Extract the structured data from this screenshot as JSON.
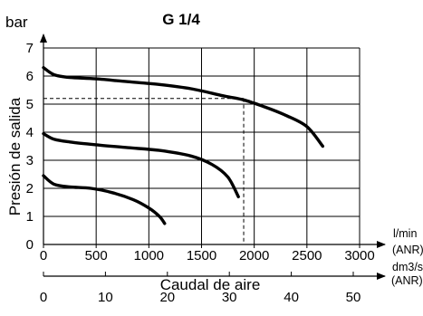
{
  "chart_data": {
    "type": "line",
    "title": "G 1/4",
    "ylabel": "Presión de salida",
    "y_unit": "bar",
    "xlabel": "Caudal de aire",
    "x_unit_primary": [
      "l/min",
      "(ANR)"
    ],
    "x_unit_secondary": [
      "dm3/s",
      "(ANR)"
    ],
    "ylim": [
      0,
      7
    ],
    "xlim": [
      0,
      3000
    ],
    "y_ticks": [
      "0",
      "1",
      "2",
      "3",
      "4",
      "5",
      "6",
      "7"
    ],
    "x_ticks": [
      "0",
      "500",
      "1000",
      "1500",
      "2000",
      "2500",
      "3000"
    ],
    "x2_ticks": [
      "0",
      "10",
      "20",
      "30",
      "40",
      "50"
    ],
    "grid": true,
    "series": [
      {
        "x": [
          0,
          100,
          250,
          500,
          800,
          1100,
          1400,
          1700,
          1900,
          2100,
          2300,
          2500,
          2650
        ],
        "y": [
          6.3,
          6.05,
          5.95,
          5.9,
          5.8,
          5.7,
          5.55,
          5.3,
          5.15,
          4.9,
          4.6,
          4.2,
          3.5
        ]
      },
      {
        "x": [
          0,
          100,
          250,
          500,
          800,
          1100,
          1400,
          1600,
          1750,
          1850
        ],
        "y": [
          3.95,
          3.75,
          3.65,
          3.55,
          3.45,
          3.35,
          3.15,
          2.85,
          2.4,
          1.7
        ]
      },
      {
        "x": [
          0,
          100,
          250,
          450,
          650,
          850,
          1000,
          1100,
          1150
        ],
        "y": [
          2.45,
          2.15,
          2.05,
          2.0,
          1.85,
          1.6,
          1.3,
          1.0,
          0.75
        ]
      }
    ],
    "reference_point": {
      "x": 1900,
      "y": 5.2
    }
  }
}
